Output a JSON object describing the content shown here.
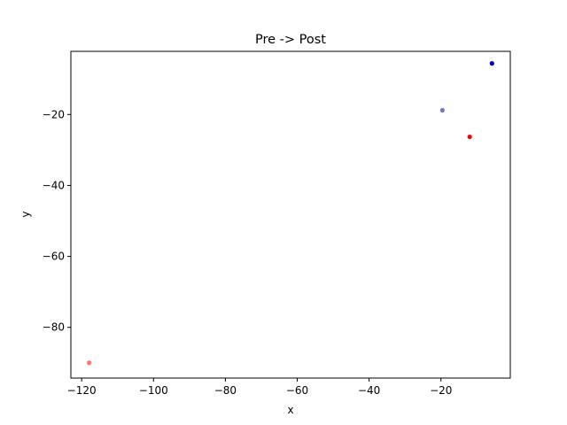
{
  "chart_data": {
    "type": "scatter",
    "title": "Pre -> Post",
    "xlabel": "x",
    "ylabel": "y",
    "xlim": [
      -123.0,
      -0.7
    ],
    "ylim": [
      -94.3,
      -2.2
    ],
    "xticks": [
      -120,
      -100,
      -80,
      -60,
      -40,
      -20
    ],
    "yticks": [
      -80,
      -60,
      -40,
      -20
    ],
    "grid": false,
    "points": [
      {
        "x": -5.8,
        "y": -5.6,
        "color": "#0000cc",
        "opacity": 1.0
      },
      {
        "x": -19.6,
        "y": -18.8,
        "color": "#0000cc",
        "opacity": 0.55
      },
      {
        "x": -12.0,
        "y": -26.3,
        "color": "#ff0000",
        "opacity": 1.0
      },
      {
        "x": -117.9,
        "y": -90.0,
        "color": "#ff0000",
        "opacity": 0.55
      }
    ]
  }
}
